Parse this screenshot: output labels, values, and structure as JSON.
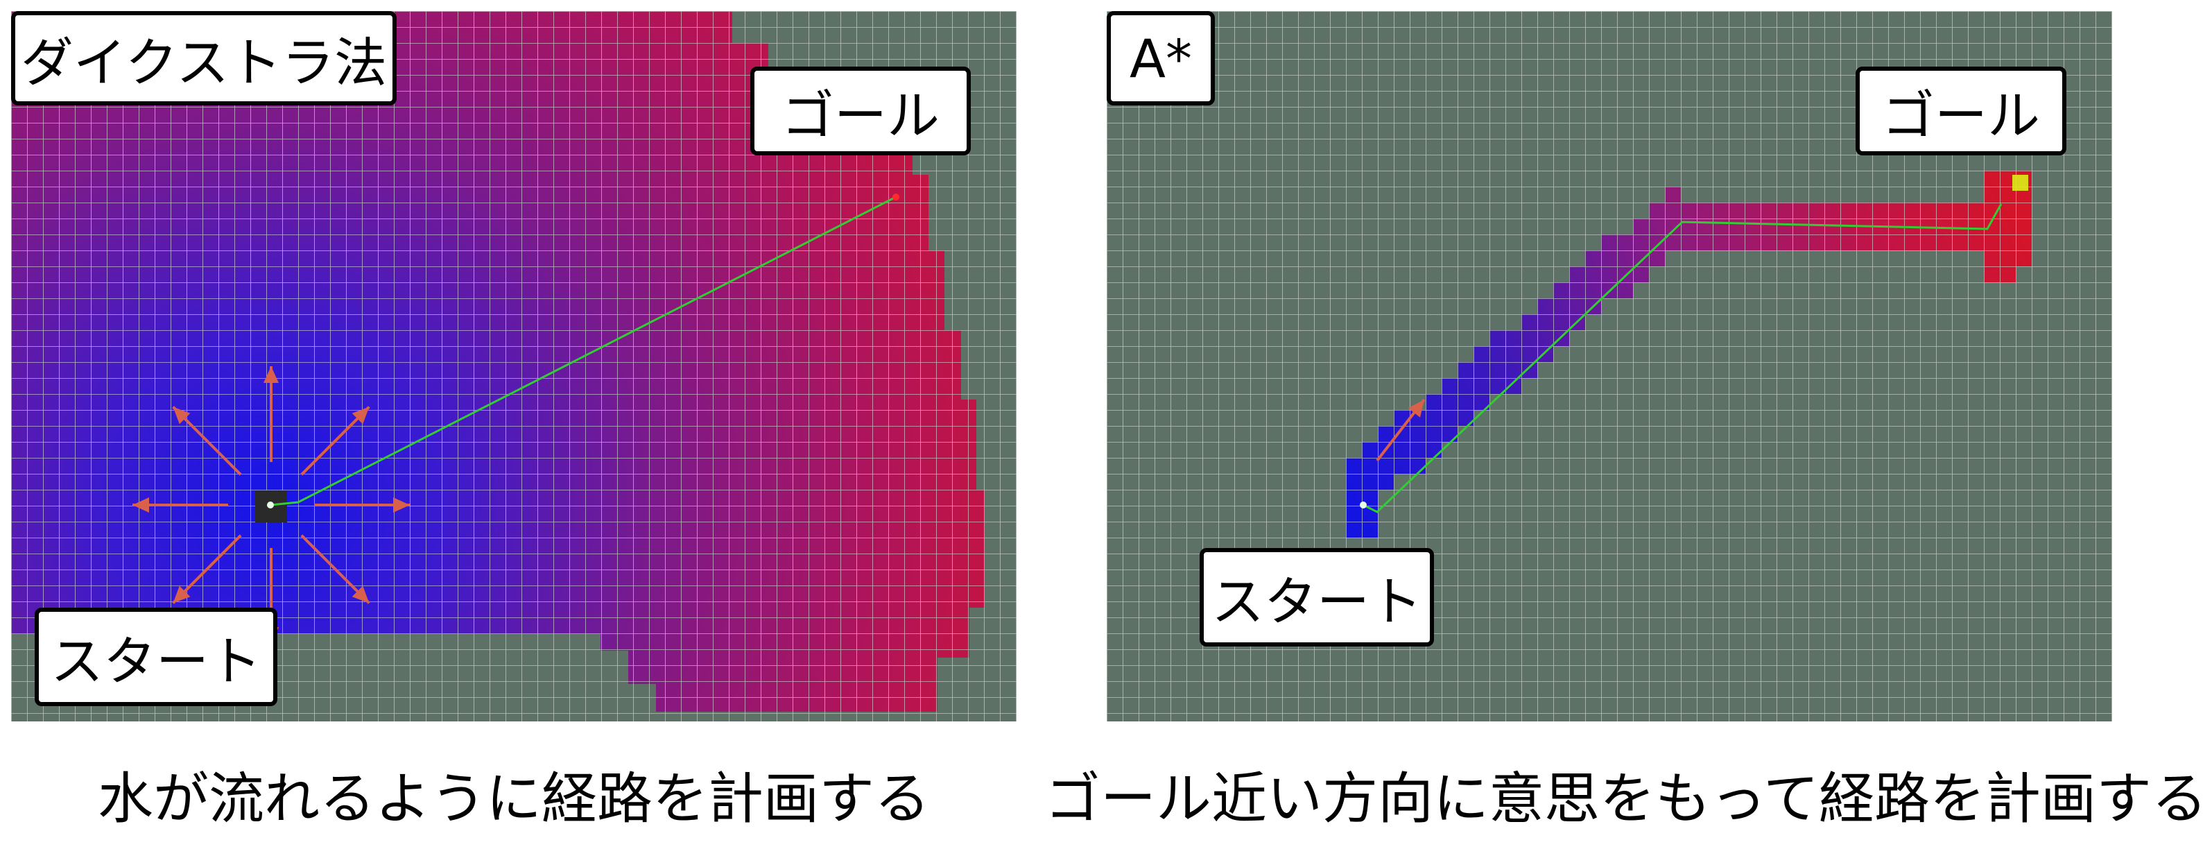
{
  "left_panel": {
    "title": "ダイクストラ法",
    "goal_label": "ゴール",
    "start_label": "スタート",
    "caption": "水が流れるように経路を計画する"
  },
  "right_panel": {
    "title": "A*",
    "goal_label": "ゴール",
    "start_label": "スタート",
    "caption": "ゴール近い方向に意思をもって経路を計画する"
  },
  "colors": {
    "grid_background": "#5e7167",
    "grid_line": "#c9d1cc",
    "near_start": "#1414e0",
    "far_cost": "#c8143c",
    "goal_cell": "#d9d919",
    "path": "#33cc33",
    "arrow": "#d9604a",
    "start_cell": "#2a2a2a"
  },
  "icons": {
    "expansion_arrows": "arrow-icon",
    "start_marker": "start-cell-icon",
    "goal_marker": "goal-cell-icon"
  }
}
